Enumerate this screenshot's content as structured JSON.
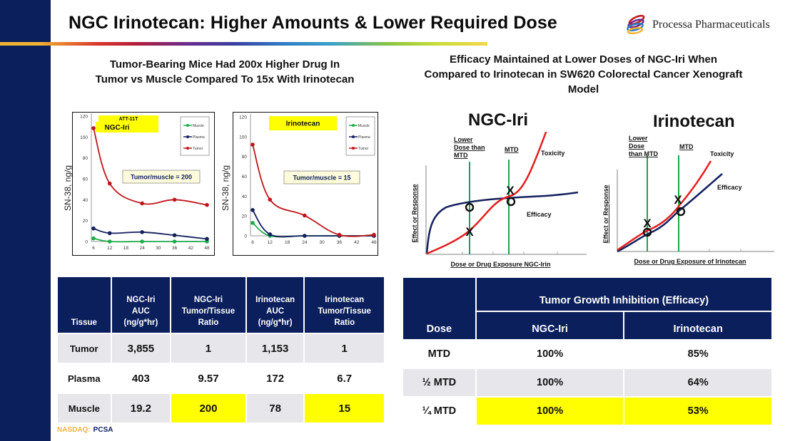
{
  "header": {
    "title": "NGC Irinotecan: Higher Amounts & Lower Required Dose",
    "company": "Processa Pharmaceuticals"
  },
  "left": {
    "subtitle_line1": "Tumor-Bearing Mice Had 200x Higher Drug In",
    "subtitle_line2": "Tumor vs Muscle Compared To 15x With Irinotecan"
  },
  "right": {
    "subtitle_line1": "Efficacy Maintained at Lower Doses of NGC-Iri When",
    "subtitle_line2": "Compared to Irinotecan in SW620 Colorectal Cancer Xenograft",
    "subtitle_line3": "Model"
  },
  "colors": {
    "navy": "#0b1f5c",
    "highlight": "#ffff00",
    "muscle": "#1faa4a",
    "plasma": "#13215e",
    "tumor": "#c0161b",
    "mtd_line": "#1fa34a"
  },
  "chart_data": [
    {
      "type": "line",
      "title": "NGC-Iri",
      "title_overlay": "ATT-11T",
      "annotation": "Tumor/muscle = 200",
      "xlabel": "",
      "ylabel": "SN-38, ng/g",
      "x": [
        6,
        12,
        24,
        36,
        48
      ],
      "xticks": [
        6,
        12,
        18,
        24,
        30,
        36,
        42,
        48
      ],
      "yticks": [
        0,
        20,
        40,
        60,
        80,
        100,
        120
      ],
      "xlim": [
        6,
        48
      ],
      "ylim": [
        0,
        120
      ],
      "legend": "top-right",
      "grid": false,
      "series": [
        {
          "name": "Muscle",
          "values": [
            3,
            0,
            0,
            0,
            0
          ]
        },
        {
          "name": "Plasma",
          "values": [
            12.5,
            8,
            9,
            6,
            2.5
          ]
        },
        {
          "name": "Tumor",
          "values": [
            108.5,
            55.5,
            36.5,
            40,
            35
          ]
        }
      ]
    },
    {
      "type": "line",
      "title": "Irinotecan",
      "annotation": "Tumor/muscle = 15",
      "xlabel": "",
      "ylabel": "SN-38, ng/g",
      "x": [
        6,
        12,
        24,
        36,
        48
      ],
      "xticks": [
        6,
        12,
        18,
        24,
        30,
        36,
        42,
        48
      ],
      "yticks": [
        0,
        20,
        40,
        60,
        80,
        100,
        120
      ],
      "xlim": [
        6,
        48
      ],
      "ylim": [
        0,
        120
      ],
      "legend": "top-right",
      "grid": false,
      "series": [
        {
          "name": "Muscle",
          "values": [
            13,
            0,
            0,
            0,
            0
          ]
        },
        {
          "name": "Plasma",
          "values": [
            26,
            1.5,
            0,
            0,
            0
          ]
        },
        {
          "name": "Tumor",
          "values": [
            92,
            36.5,
            20.5,
            1,
            1
          ]
        }
      ]
    },
    {
      "type": "line",
      "title": "NGC-Iri",
      "xlabel": "Dose or Drug Exposure NGC-Irin",
      "ylabel": "Effect or Response",
      "conceptual": true,
      "labels": {
        "lower_dose": "Lower Dose than MTD",
        "mtd": "MTD",
        "toxicity": "Toxicity",
        "efficacy": "Efficacy"
      },
      "series": [
        {
          "name": "Toxicity",
          "shape": "sigmoid rising, crosses efficacy near MTD"
        },
        {
          "name": "Efficacy",
          "shape": "rapid rise then plateau"
        }
      ]
    },
    {
      "type": "line",
      "title": "Irinotecan",
      "xlabel": "Dose or Drug Exposure of Irinotecan",
      "ylabel": "Effect or Response",
      "conceptual": true,
      "labels": {
        "lower_dose": "Lower Dose than MTD",
        "mtd": "MTD",
        "toxicity": "Toxicity",
        "efficacy": "Efficacy"
      },
      "series": [
        {
          "name": "Toxicity",
          "shape": "exponential rise, above efficacy"
        },
        {
          "name": "Efficacy",
          "shape": "exponential rise, below toxicity"
        }
      ]
    }
  ],
  "auc_table": {
    "headers": [
      "Tissue",
      "NGC-Iri AUC (ng/g*hr)",
      "NGC-Iri Tumor/Tissue Ratio",
      "Irinotecan AUC (ng/g*hr)",
      "Irinotecan Tumor/Tissue Ratio"
    ],
    "header_lines": [
      [
        "Tissue"
      ],
      [
        "NGC-Iri",
        "AUC",
        "(ng/g*hr)"
      ],
      [
        "NGC-Iri",
        "Tumor/Tissue",
        "Ratio"
      ],
      [
        "Irinotecan",
        "AUC",
        "(ng/g*hr)"
      ],
      [
        "Irinotecan",
        "Tumor/Tissue",
        "Ratio"
      ]
    ],
    "rows": [
      [
        "Tumor",
        "3,855",
        "1",
        "1,153",
        "1"
      ],
      [
        "Plasma",
        "403",
        "9.57",
        "172",
        "6.7"
      ],
      [
        "Muscle",
        "19.2",
        "200",
        "78",
        "15"
      ]
    ]
  },
  "efficacy_table": {
    "group_header": "Tumor Growth Inhibition (Efficacy)",
    "headers": [
      "Dose",
      "NGC-Iri",
      "Irinotecan"
    ],
    "rows": [
      [
        "MTD",
        "100%",
        "85%"
      ],
      [
        "½ MTD",
        "100%",
        "64%"
      ],
      [
        "¼ MTD",
        "100%",
        "53%"
      ]
    ]
  },
  "footer": {
    "exchange": "NASDAQ:",
    "ticker": "PCSA"
  }
}
